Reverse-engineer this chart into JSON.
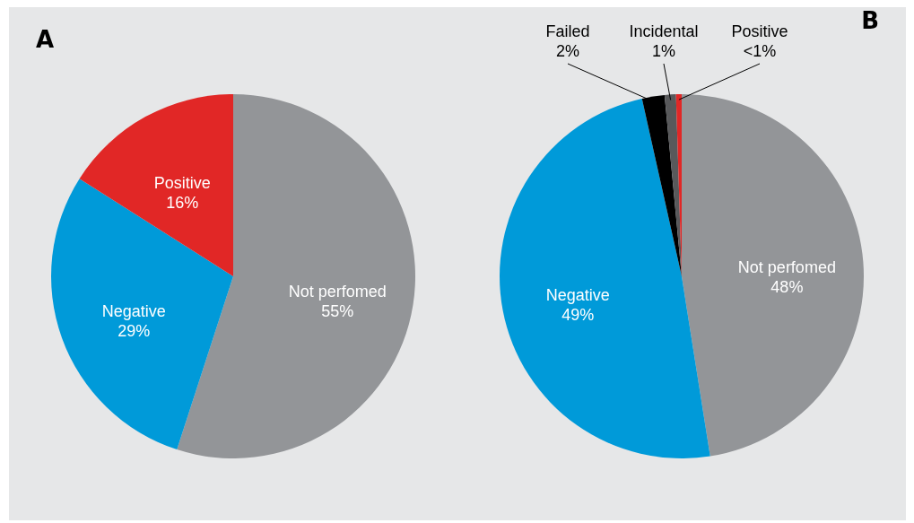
{
  "chart_data": [
    {
      "type": "pie",
      "title": "A",
      "categories": [
        "Not perfomed",
        "Negative",
        "Positive"
      ],
      "values": [
        55,
        29,
        16
      ],
      "colors": [
        "#939598",
        "#009ad9",
        "#e12726"
      ],
      "value_labels": [
        "55%",
        "29%",
        "16%"
      ]
    },
    {
      "type": "pie",
      "title": "B",
      "categories": [
        "Not perfomed",
        "Negative",
        "Failed",
        "Incidental",
        "Positive"
      ],
      "values": [
        47.5,
        49,
        2,
        1,
        0.5
      ],
      "colors": [
        "#939598",
        "#009ad9",
        "#000000",
        "#58595b",
        "#e12726"
      ],
      "value_labels": [
        "48%",
        "49%",
        "2%",
        "1%",
        "<1%"
      ]
    }
  ]
}
